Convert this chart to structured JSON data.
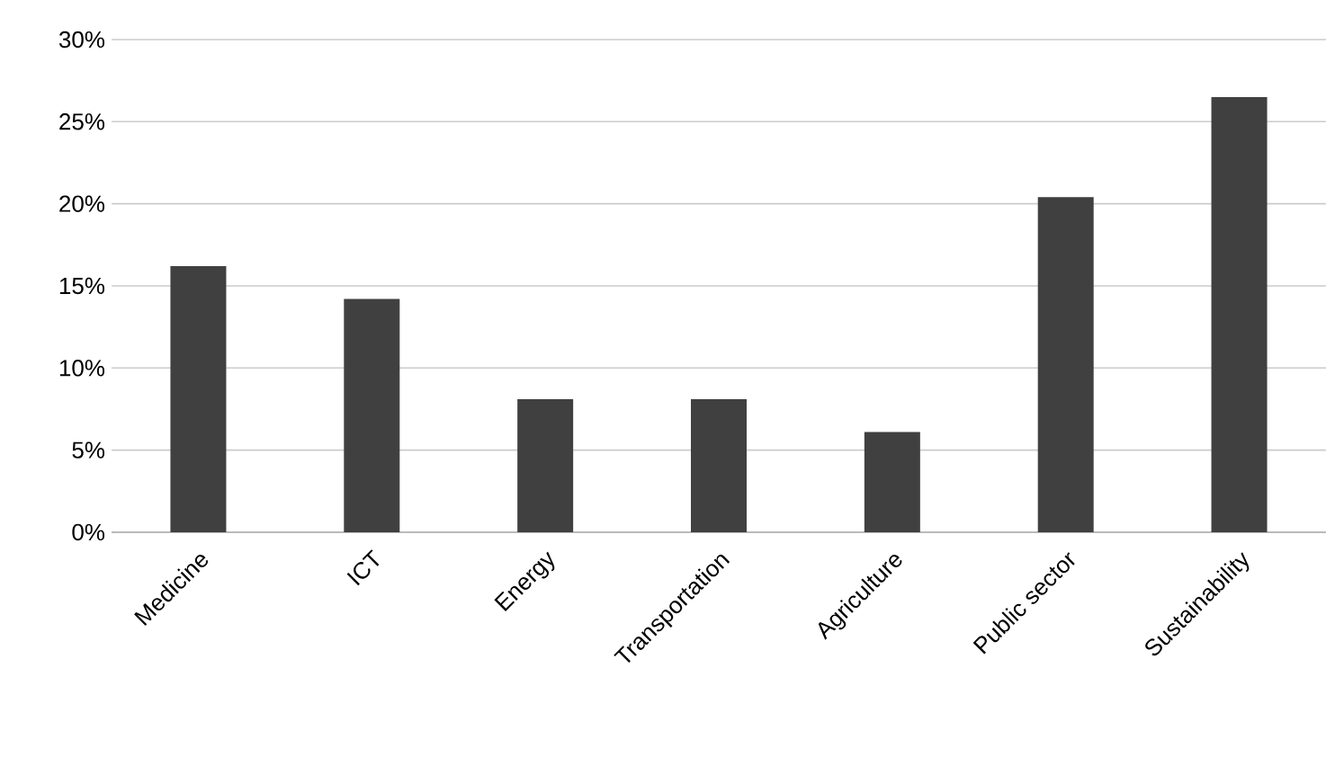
{
  "chart_data": {
    "type": "bar",
    "categories": [
      "Medicine",
      "ICT",
      "Energy",
      "Transportation",
      "Agriculture",
      "Public sector",
      "Sustainability"
    ],
    "values": [
      16.2,
      14.2,
      8.1,
      8.1,
      6.1,
      20.4,
      26.5
    ],
    "color": "#404040",
    "ylim": [
      0,
      30
    ],
    "yticks": [
      {
        "value": 0,
        "label": "0%"
      },
      {
        "value": 5,
        "label": "5%"
      },
      {
        "value": 10,
        "label": "10%"
      },
      {
        "value": 15,
        "label": "15%"
      },
      {
        "value": 20,
        "label": "20%"
      },
      {
        "value": 25,
        "label": "25%"
      },
      {
        "value": 30,
        "label": "30%"
      }
    ],
    "grid": "y"
  }
}
